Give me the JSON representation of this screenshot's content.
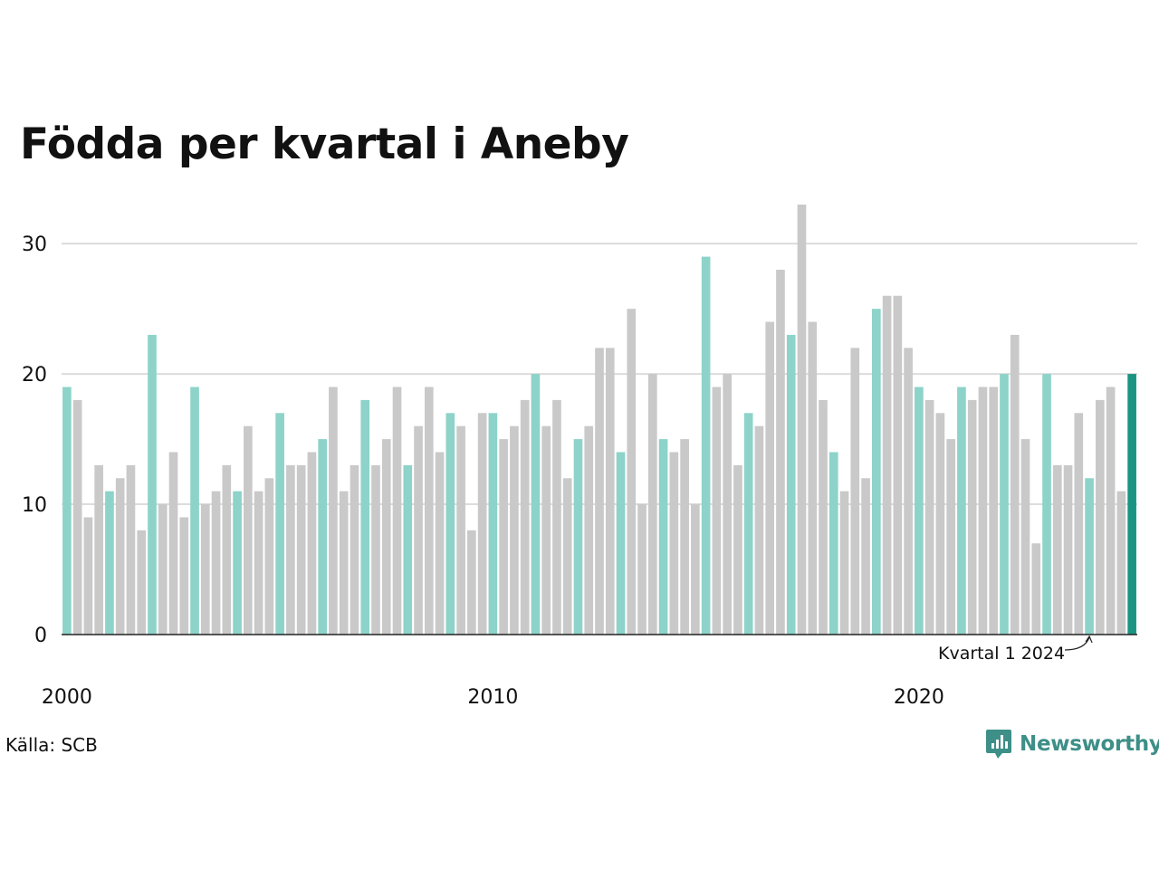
{
  "title": "Födda per kvartal i Aneby",
  "source": "Källa: SCB",
  "brand": "Newsworthy",
  "colors": {
    "q1": "#8dd3c9",
    "other": "#c9c9c9",
    "latest": "#1a9482",
    "grid": "#dcdcdc",
    "axis": "#222222",
    "brand": "#3d8f87"
  },
  "chart_data": {
    "type": "bar",
    "title": "Födda per kvartal i Aneby",
    "start_year": 2000,
    "periods_per_year": 4,
    "values": [
      19,
      18,
      9,
      13,
      11,
      12,
      13,
      8,
      23,
      10,
      14,
      9,
      19,
      10,
      11,
      13,
      11,
      16,
      11,
      12,
      17,
      13,
      13,
      14,
      15,
      19,
      11,
      13,
      18,
      13,
      15,
      19,
      13,
      16,
      19,
      14,
      17,
      16,
      8,
      17,
      17,
      15,
      16,
      18,
      20,
      16,
      18,
      12,
      15,
      16,
      22,
      22,
      14,
      25,
      10,
      20,
      15,
      14,
      15,
      10,
      29,
      19,
      20,
      13,
      17,
      16,
      24,
      28,
      23,
      33,
      24,
      18,
      14,
      11,
      22,
      12,
      25,
      26,
      26,
      22,
      19,
      18,
      17,
      15,
      19,
      18,
      19,
      19,
      20,
      23,
      15,
      7,
      20,
      13,
      13,
      17,
      12,
      18,
      19,
      11,
      20
    ],
    "ylim": [
      0,
      33
    ],
    "yticks": [
      0,
      10,
      20,
      30
    ],
    "xticks": [
      "2000",
      "2010",
      "2020"
    ],
    "annotation": "Kvartal 1 2024",
    "grid": true
  }
}
